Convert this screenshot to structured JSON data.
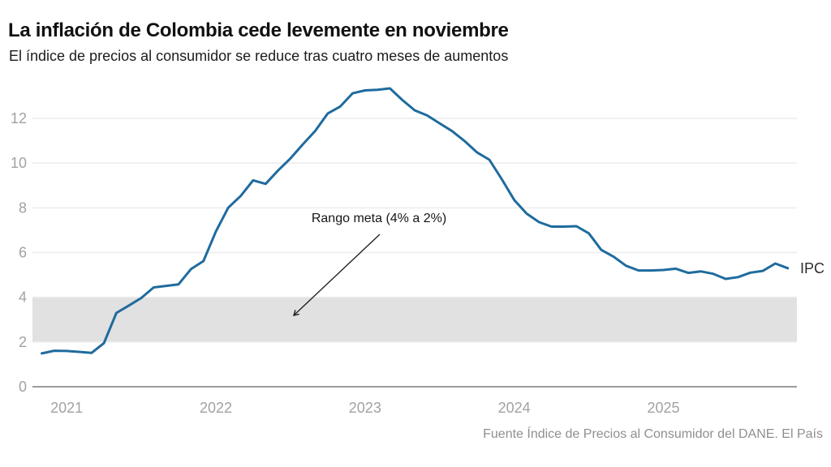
{
  "header": {
    "title": "La inflación de Colombia cede levemente en noviembre",
    "subtitle": "El índice de precios al consumidor se reduce tras cuatro meses de aumentos"
  },
  "source": "Fuente Índice de Precios al Consumidor del DANE. El País",
  "colors": {
    "line": "#1f6b9e",
    "band": "#e1e1e1",
    "grid": "#ececec",
    "axis": "#9b9b9b",
    "tick_label": "#a2a2a2",
    "annotation_arrow": "#222222"
  },
  "chart_data": {
    "type": "line",
    "title": "La inflación de Colombia cede levemente en noviembre",
    "subtitle": "El índice de precios al consumidor se reduce tras cuatro meses de aumentos",
    "x_start": "2020-11",
    "x_end": "2025-11",
    "x_frequency": "monthly",
    "x_tick_labels": [
      "2021",
      "2022",
      "2023",
      "2024",
      "2025"
    ],
    "y_ticks": [
      0,
      2,
      4,
      6,
      8,
      10,
      12
    ],
    "ylim": [
      0,
      13.8
    ],
    "grid": "horizontal",
    "legend_position": "end-of-line",
    "series": [
      {
        "name": "IPC",
        "label": "IPC",
        "color": "#1f6b9e",
        "values": [
          1.49,
          1.61,
          1.6,
          1.56,
          1.51,
          1.95,
          3.3,
          3.63,
          3.97,
          4.44,
          4.51,
          4.58,
          5.26,
          5.62,
          6.94,
          8.01,
          8.53,
          9.23,
          9.07,
          9.67,
          10.21,
          10.84,
          11.44,
          12.22,
          12.53,
          13.12,
          13.25,
          13.28,
          13.34,
          12.82,
          12.36,
          12.13,
          11.78,
          11.43,
          10.99,
          10.48,
          10.15,
          9.28,
          8.35,
          7.74,
          7.36,
          7.16,
          7.16,
          7.18,
          6.86,
          6.12,
          5.81,
          5.41,
          5.2,
          5.2,
          5.22,
          5.28,
          5.09,
          5.16,
          5.05,
          4.82,
          4.9,
          5.1,
          5.18,
          5.51,
          5.3
        ]
      }
    ],
    "target_band": {
      "from": 2,
      "to": 4,
      "color": "#e1e1e1",
      "label": "Rango meta (4% a 2%)"
    },
    "annotation": {
      "text": "Rango meta (4% a 2%)",
      "arrow": true
    }
  }
}
